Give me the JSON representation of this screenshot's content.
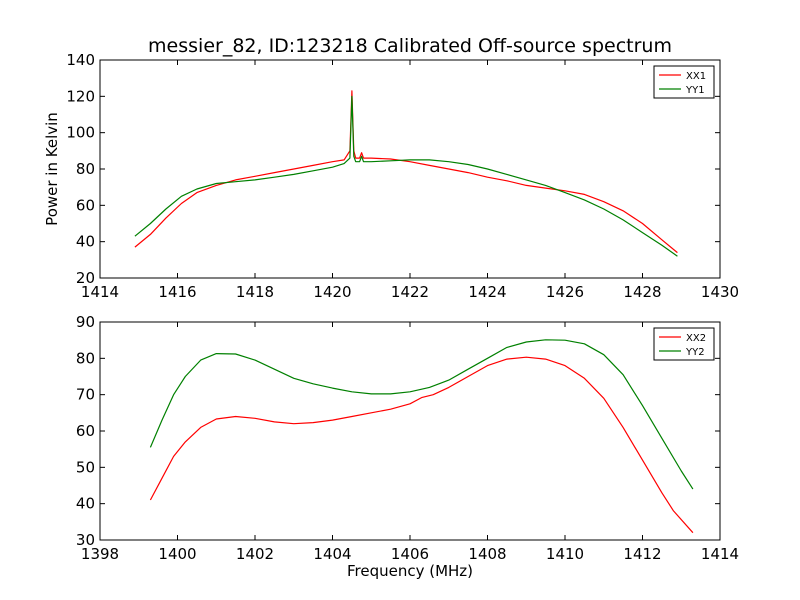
{
  "figure_title": "messier_82, ID:123218 Calibrated Off-source spectrum",
  "chart_data": [
    {
      "type": "line",
      "title": "messier_82, ID:123218 Calibrated Off-source spectrum",
      "xlabel": "",
      "ylabel": "Power in Kelvin",
      "xlim": [
        1414,
        1430
      ],
      "ylim": [
        20,
        140
      ],
      "xticks": [
        "1414",
        "1416",
        "1418",
        "1420",
        "1422",
        "1424",
        "1426",
        "1428",
        "1430"
      ],
      "yticks": [
        "20",
        "40",
        "60",
        "80",
        "100",
        "120",
        "140"
      ],
      "grid": false,
      "legend_position": "top-right",
      "series": [
        {
          "name": "XX1",
          "color": "#ff0000",
          "x": [
            1414.9,
            1415.3,
            1415.7,
            1416.1,
            1416.5,
            1417.0,
            1417.5,
            1418.0,
            1418.5,
            1419.0,
            1419.5,
            1420.0,
            1420.3,
            1420.45,
            1420.5,
            1420.55,
            1420.6,
            1420.7,
            1420.75,
            1420.8,
            1421.0,
            1421.5,
            1422.0,
            1422.5,
            1423.0,
            1423.5,
            1424.0,
            1424.5,
            1425.0,
            1425.5,
            1426.0,
            1426.5,
            1427.0,
            1427.5,
            1428.0,
            1428.5,
            1428.9
          ],
          "y": [
            37,
            44,
            53,
            61,
            67,
            71,
            74,
            76,
            78,
            80,
            82,
            84,
            85,
            90,
            123,
            90,
            86,
            86,
            89,
            86,
            86,
            85.5,
            84,
            82,
            80,
            78,
            75.5,
            73.5,
            71,
            69.5,
            68,
            66,
            62,
            57,
            50,
            41,
            34
          ]
        },
        {
          "name": "YY1",
          "color": "#008000",
          "x": [
            1414.9,
            1415.3,
            1415.7,
            1416.1,
            1416.5,
            1417.0,
            1417.5,
            1418.0,
            1418.5,
            1419.0,
            1419.5,
            1420.0,
            1420.3,
            1420.45,
            1420.5,
            1420.55,
            1420.6,
            1420.7,
            1420.75,
            1420.8,
            1421.0,
            1421.5,
            1422.0,
            1422.5,
            1423.0,
            1423.5,
            1424.0,
            1424.5,
            1425.0,
            1425.5,
            1426.0,
            1426.5,
            1427.0,
            1427.5,
            1428.0,
            1428.5,
            1428.9
          ],
          "y": [
            43,
            50,
            58,
            65,
            69,
            72,
            73,
            74,
            75.5,
            77,
            79,
            81,
            83,
            86,
            120,
            87,
            84,
            84,
            87,
            84,
            84,
            84.5,
            85,
            85,
            84,
            82.5,
            80,
            77,
            74,
            71,
            67,
            63,
            58,
            52,
            45,
            38,
            32
          ]
        }
      ]
    },
    {
      "type": "line",
      "title": "",
      "xlabel": "Frequency (MHz)",
      "ylabel": "",
      "xlim": [
        1398,
        1414
      ],
      "ylim": [
        30,
        90
      ],
      "xticks": [
        "1398",
        "1400",
        "1402",
        "1404",
        "1406",
        "1408",
        "1410",
        "1412",
        "1414"
      ],
      "yticks": [
        "30",
        "40",
        "50",
        "60",
        "70",
        "80",
        "90"
      ],
      "grid": false,
      "legend_position": "top-right",
      "series": [
        {
          "name": "XX2",
          "color": "#ff0000",
          "x": [
            1399.3,
            1399.6,
            1399.9,
            1400.2,
            1400.6,
            1401.0,
            1401.5,
            1402.0,
            1402.5,
            1403.0,
            1403.5,
            1404.0,
            1404.5,
            1405.0,
            1405.5,
            1406.0,
            1406.3,
            1406.6,
            1407.0,
            1407.5,
            1408.0,
            1408.5,
            1409.0,
            1409.5,
            1410.0,
            1410.5,
            1411.0,
            1411.5,
            1412.0,
            1412.5,
            1412.8,
            1413.3
          ],
          "y": [
            41,
            47,
            53,
            57,
            61,
            63.3,
            64,
            63.5,
            62.5,
            62,
            62.3,
            63,
            64,
            65,
            66,
            67.5,
            69.2,
            70,
            72,
            75,
            78,
            79.8,
            80.3,
            79.8,
            78,
            74.5,
            69,
            61,
            52,
            43,
            38,
            32
          ]
        },
        {
          "name": "YY2",
          "color": "#008000",
          "x": [
            1399.3,
            1399.6,
            1399.9,
            1400.2,
            1400.6,
            1401.0,
            1401.5,
            1402.0,
            1402.5,
            1403.0,
            1403.5,
            1404.0,
            1404.5,
            1405.0,
            1405.5,
            1406.0,
            1406.5,
            1407.0,
            1407.5,
            1408.0,
            1408.5,
            1409.0,
            1409.5,
            1410.0,
            1410.5,
            1411.0,
            1411.5,
            1412.0,
            1412.5,
            1413.0,
            1413.3
          ],
          "y": [
            55.5,
            63,
            70,
            75,
            79.5,
            81.3,
            81.2,
            79.5,
            77,
            74.5,
            73,
            71.8,
            70.8,
            70.2,
            70.2,
            70.8,
            72,
            74,
            77,
            80,
            83,
            84.5,
            85.1,
            85,
            84,
            81,
            75.5,
            67,
            58,
            49,
            44
          ]
        }
      ]
    }
  ]
}
